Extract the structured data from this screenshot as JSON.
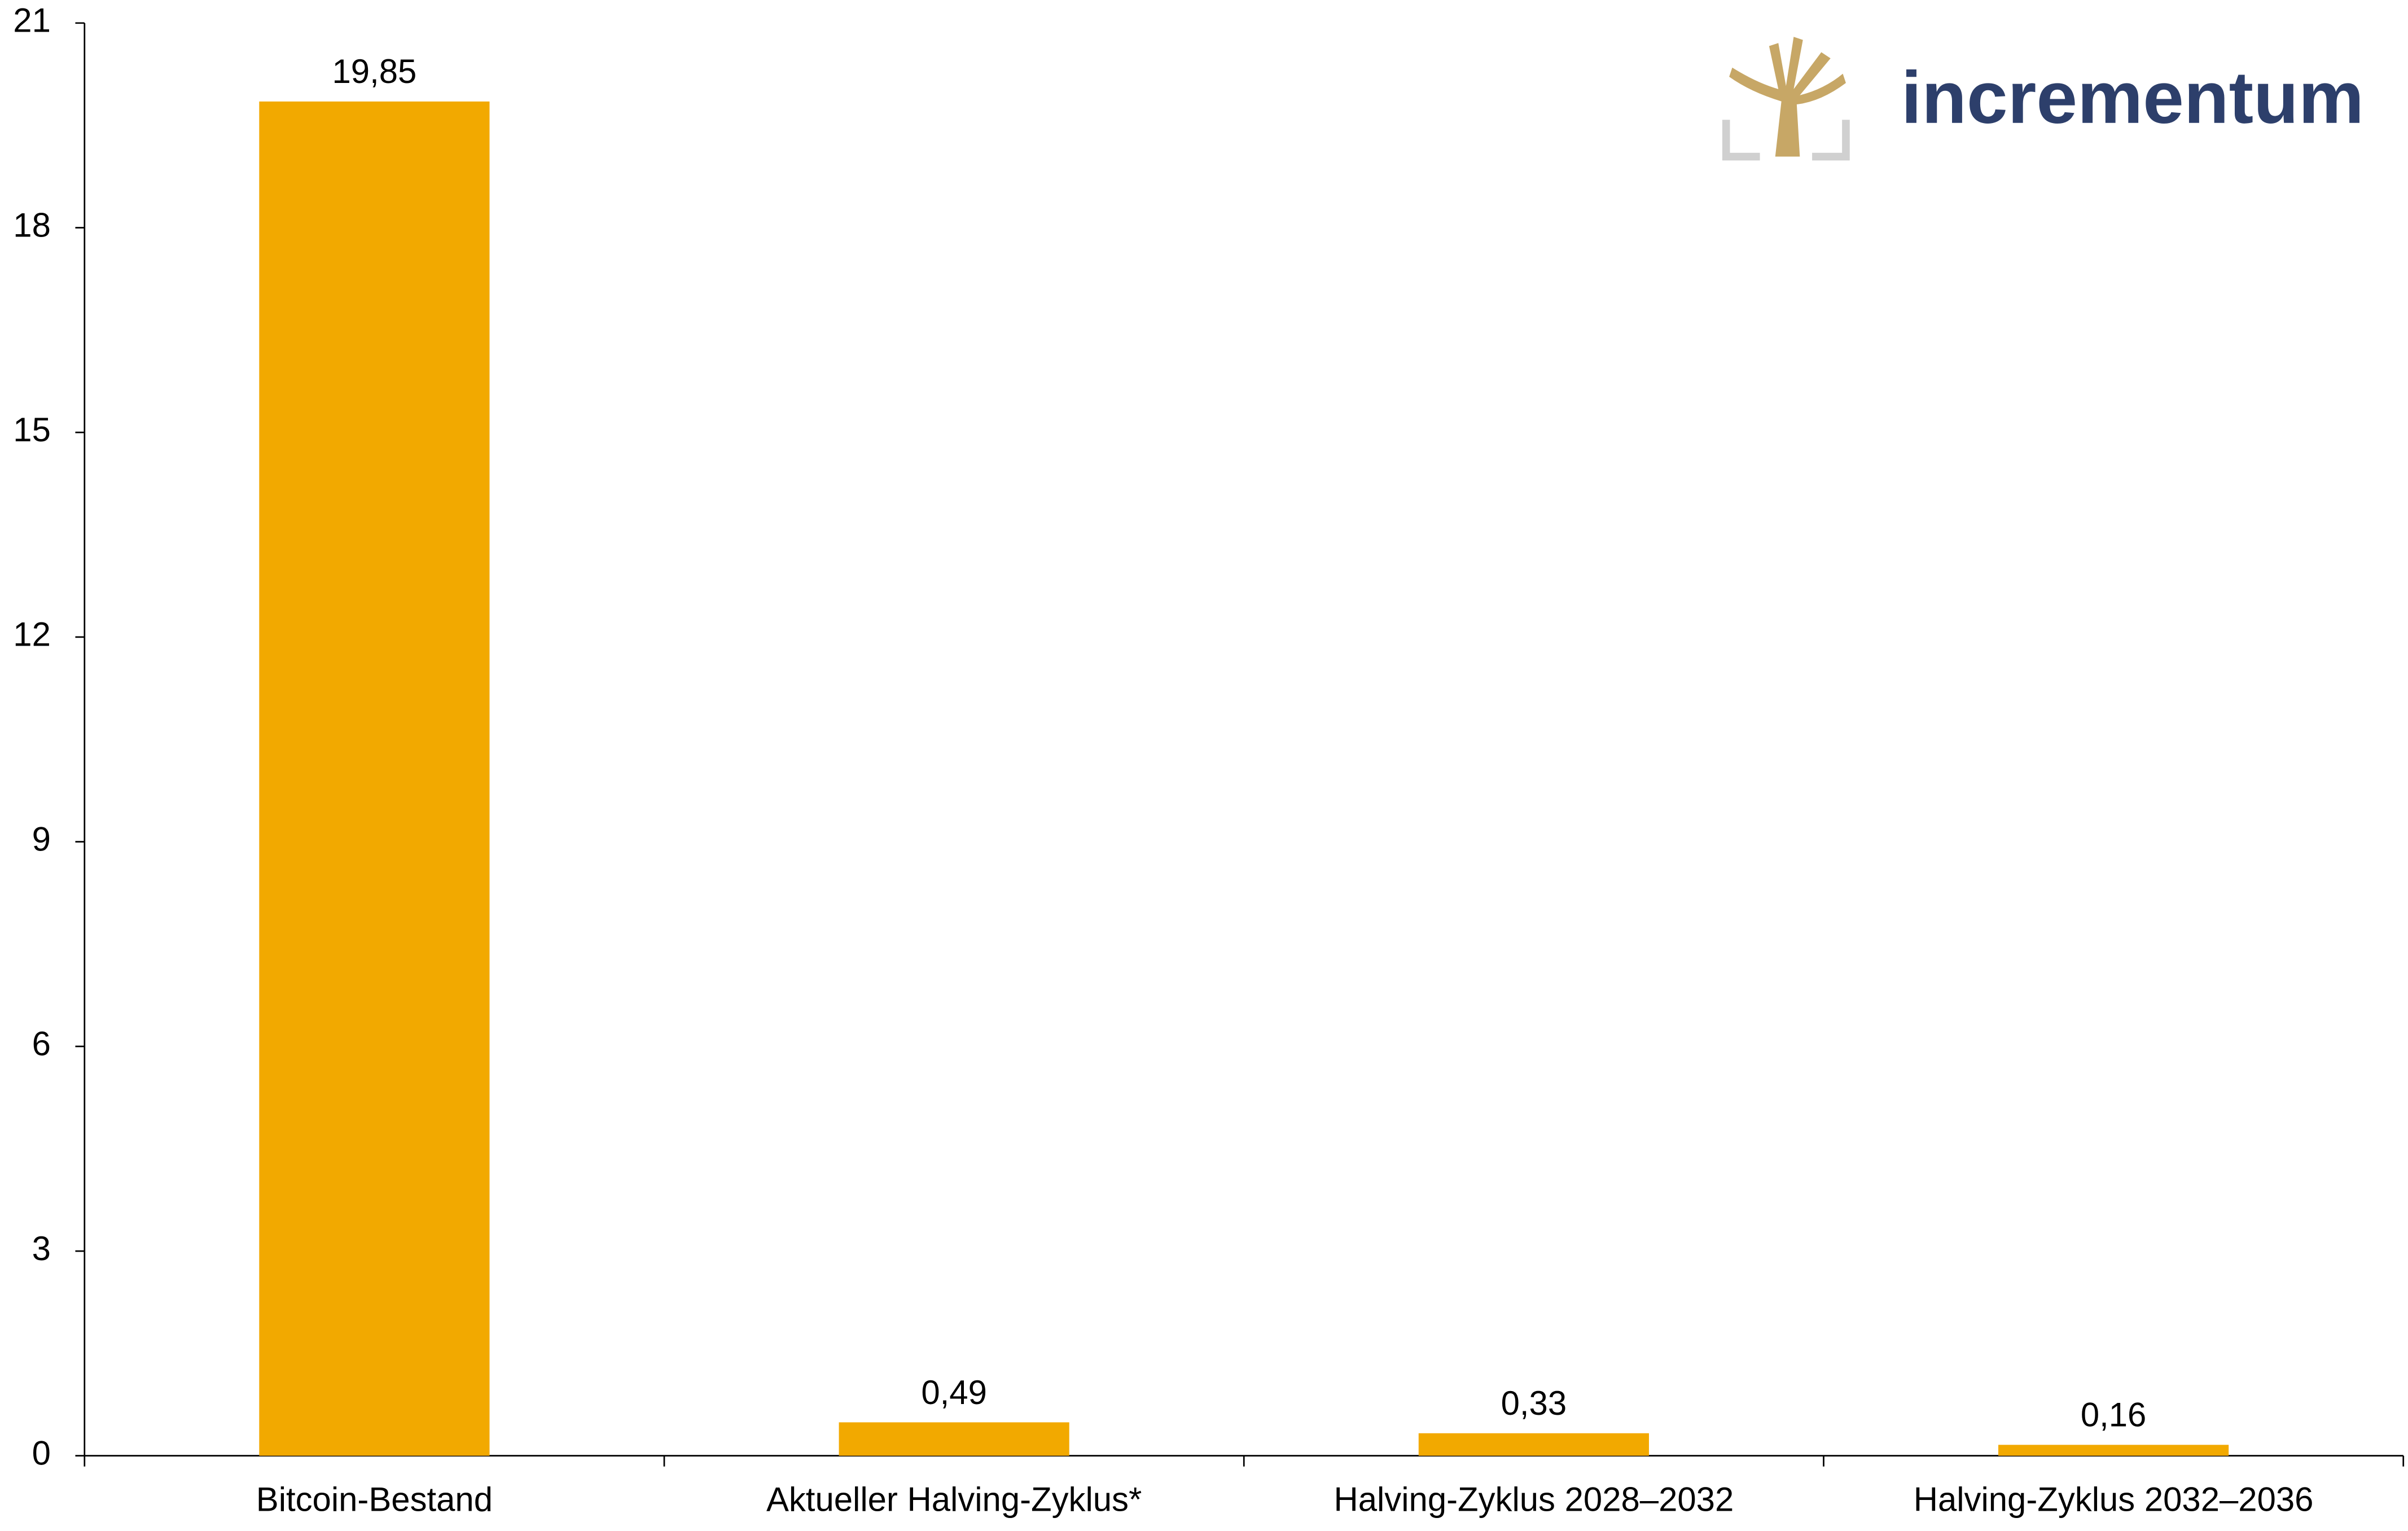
{
  "chart_data": {
    "type": "bar",
    "categories": [
      "Bitcoin-Bestand",
      "Aktueller Halving-Zyklus*",
      "Halving-Zyklus 2028–2032",
      "Halving-Zyklus 2032–2036"
    ],
    "values": [
      19.85,
      0.49,
      0.33,
      0.16
    ],
    "value_labels": [
      "19,85",
      "0,49",
      "0,33",
      "0,16"
    ],
    "color": "#f2a900",
    "ylim": [
      0,
      21
    ],
    "yticks": [
      0,
      3,
      6,
      9,
      12,
      15,
      18,
      21
    ],
    "grid": false
  },
  "logo": {
    "text": "incrementum"
  }
}
